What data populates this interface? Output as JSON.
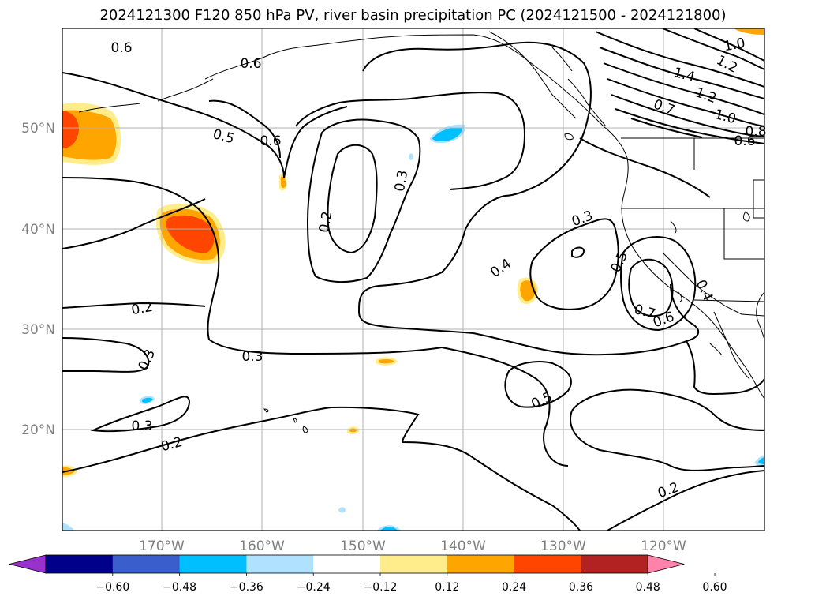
{
  "title": "2024121300 F120 850 hPa PV, river basin precipitation PC (2024121500 - 2024121800)",
  "lat_labels": [
    "50°N",
    "40°N",
    "30°N",
    "20°N"
  ],
  "lon_labels": [
    "170°W",
    "160°W",
    "150°W",
    "140°W",
    "130°W",
    "120°W"
  ],
  "contour_labels": [
    "0.6",
    "0.6",
    "0.5",
    "0.6",
    "0.3",
    "0.2",
    "0.2",
    "0.3",
    "0.3",
    "0.3",
    "0.2",
    "0.3",
    "0.4",
    "0.5",
    "0.7",
    "0.6",
    "0.4",
    "0.5",
    "0.2",
    "0.7",
    "1.0",
    "1.2",
    "1.4",
    "1.2",
    "1.0",
    "0.8",
    "0.6"
  ],
  "colorbar": {
    "colors": [
      "#9932cc",
      "#00008b",
      "#3a5fcd",
      "#00bfff",
      "#b0e2ff",
      "#ffffff",
      "#ffec8b",
      "#ffa500",
      "#ff4500",
      "#b22222",
      "#ff82ab"
    ],
    "tick_labels": [
      "−0.60",
      "−0.48",
      "−0.36",
      "−0.24",
      "−0.12",
      "0.12",
      "0.24",
      "0.36",
      "0.48",
      "0.60"
    ]
  }
}
